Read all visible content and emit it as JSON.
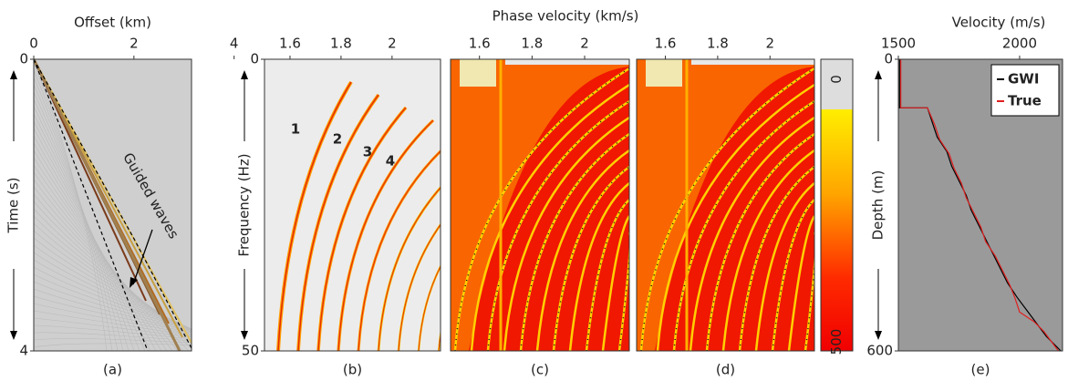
{
  "chart_data": [
    {
      "type": "image",
      "panel": "(a)",
      "x_label": "Offset (km)",
      "y_label": "Time (s)",
      "xlim": [
        0,
        3.15
      ],
      "xticks": [
        0,
        2,
        4
      ],
      "ylim": [
        0,
        4
      ],
      "yticks": [
        0,
        4
      ],
      "y_inverted": true,
      "annotations": [
        "Guided waves"
      ]
    },
    {
      "type": "image",
      "panel": "(b)",
      "y_label": "Frequency (Hz)",
      "xlim": [
        1.5,
        2.19
      ],
      "xticks": [
        1.6,
        1.8,
        2.0
      ],
      "ylim": [
        0,
        50
      ],
      "yticks": [
        0,
        50
      ],
      "y_inverted": true,
      "annotations": [
        "1",
        "2",
        "3",
        "4"
      ]
    },
    {
      "type": "image",
      "panel": "(c)",
      "title": "Phase velocity (km/s)",
      "xlim": [
        1.49,
        2.17
      ],
      "xticks": [
        1.6,
        1.8,
        2.0
      ]
    },
    {
      "type": "image",
      "panel": "(d)",
      "xlim": [
        1.49,
        2.17
      ],
      "xticks": [
        1.6,
        1.8,
        2.0
      ]
    },
    {
      "type": "colorbar",
      "clim": [
        0,
        500
      ],
      "cticks": [
        0,
        500
      ]
    },
    {
      "type": "line",
      "panel": "(e)",
      "x_label": "Velocity (m/s)",
      "y_label": "Depth (m)",
      "xlim": [
        1500,
        2177
      ],
      "xticks": [
        1500,
        2000
      ],
      "ylim": [
        0,
        600
      ],
      "yticks": [
        0,
        600
      ],
      "y_inverted": true,
      "legend": "upper right",
      "series": [
        {
          "name": "GWI",
          "color": "#000000",
          "x": [
            1505,
            1505,
            1620,
            1640,
            1660,
            1700,
            1720,
            1750,
            1780,
            1800,
            1830,
            1860,
            1890,
            1920,
            1950,
            1990,
            2020,
            2050,
            2080,
            2110,
            2150,
            2170
          ],
          "y": [
            0,
            100,
            100,
            130,
            160,
            190,
            220,
            250,
            280,
            310,
            340,
            370,
            400,
            430,
            460,
            490,
            510,
            530,
            550,
            570,
            590,
            600
          ]
        },
        {
          "name": "True",
          "color": "#e02020",
          "x": [
            1510,
            1510,
            1620,
            1650,
            1670,
            1710,
            1730,
            1760,
            1780,
            1810,
            1840,
            1860,
            1900,
            1930,
            1960,
            1980,
            2000,
            2060,
            2100,
            2130,
            2160
          ],
          "y": [
            0,
            100,
            100,
            135,
            165,
            195,
            225,
            255,
            285,
            315,
            345,
            375,
            405,
            435,
            465,
            490,
            520,
            540,
            560,
            580,
            600
          ]
        }
      ]
    }
  ]
}
